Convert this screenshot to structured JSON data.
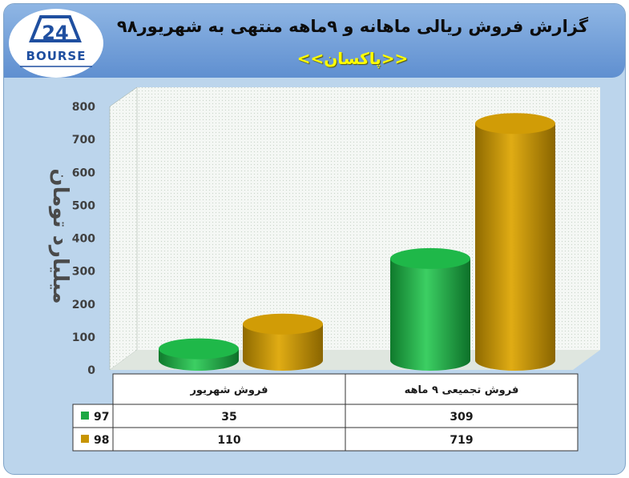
{
  "header": {
    "title": "گزارش فروش ریالی ماهانه و ۹ماهه منتهی به شهریور۹۸",
    "subtitle": "<<پاکسان>>",
    "logo_text": "BOURSE",
    "logo_number": "24"
  },
  "chart_data": {
    "type": "bar",
    "ylabel": "میلیارد تومان",
    "ylim": [
      0,
      800
    ],
    "yticks": [
      "0",
      "100",
      "200",
      "300",
      "400",
      "500",
      "600",
      "700",
      "800"
    ],
    "categories": [
      "فروش شهریور",
      "فروش تجمیعی ۹ ماهه"
    ],
    "series": [
      {
        "name": "97",
        "color": "#1ca843",
        "values": [
          35,
          309
        ]
      },
      {
        "name": "98",
        "color": "#c79400",
        "values": [
          110,
          719
        ]
      }
    ],
    "table_values": [
      [
        "35",
        "309"
      ],
      [
        "110",
        "719"
      ]
    ],
    "grid": true,
    "legend": "data-table"
  }
}
